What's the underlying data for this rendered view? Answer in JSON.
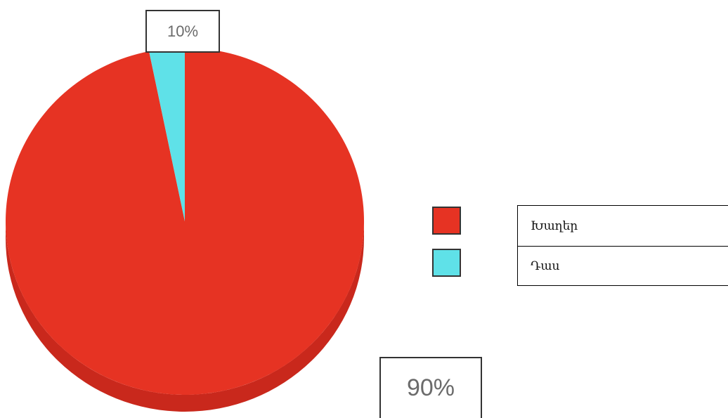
{
  "chart_data": {
    "type": "pie",
    "title": "",
    "categories": [
      "Խաղեր",
      "Դաս"
    ],
    "values": [
      90,
      10
    ],
    "value_labels": [
      "90%",
      "10%"
    ],
    "colors": [
      "#e63323",
      "#5fe1e8"
    ],
    "legend_placement": "right",
    "style": "3d"
  }
}
